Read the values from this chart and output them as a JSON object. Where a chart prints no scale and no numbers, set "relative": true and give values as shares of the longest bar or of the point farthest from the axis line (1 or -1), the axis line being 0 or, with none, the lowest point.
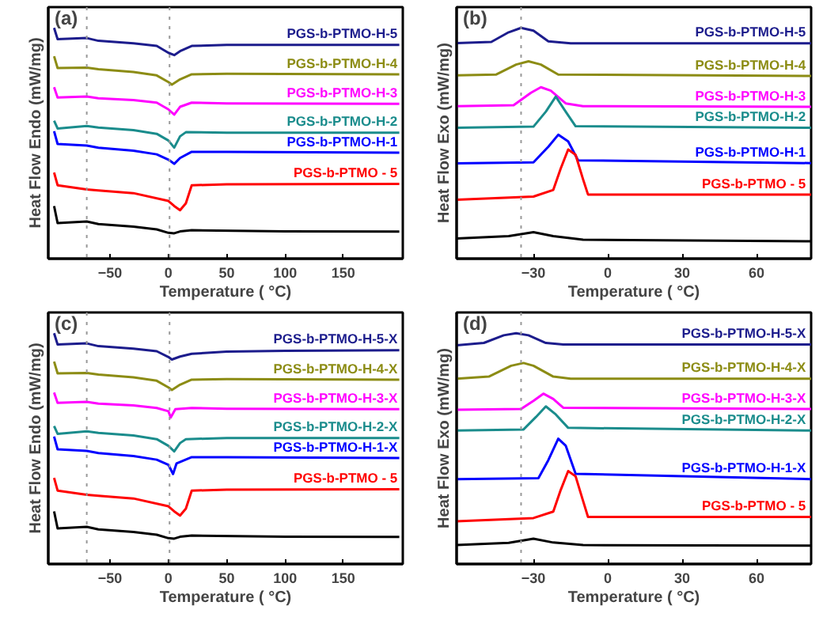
{
  "chart_data": [
    {
      "type": "line",
      "title": "(a)",
      "xlabel": "Temperature ( °C)",
      "ylabel": "Heat Flow Endo (mW/mg)",
      "relative": true,
      "xlim": [
        -103,
        201
      ],
      "xticks": [
        -50,
        0,
        50,
        100,
        150
      ],
      "grid": false,
      "ref_lines": [
        {
          "axis": "x",
          "value": -70,
          "color": "#999999",
          "line_style": "dotted"
        },
        {
          "axis": "x",
          "value": 1,
          "color": "#999999",
          "line_style": "dotted"
        }
      ],
      "series": [
        {
          "name": "PGS-b-PTMO-H-5",
          "color": "#1c1c8c",
          "x": [
            -98,
            -95,
            -70,
            -60,
            -30,
            -10,
            0,
            5,
            10,
            20,
            50,
            100,
            198
          ],
          "values": [
            1.0,
            0.951,
            0.956,
            0.944,
            0.933,
            0.922,
            0.892,
            0.882,
            0.899,
            0.922,
            0.926,
            0.926,
            0.926
          ]
        },
        {
          "name": "PGS-b-PTMO-H-4",
          "color": "#8c8c14",
          "x": [
            -98,
            -95,
            -70,
            -60,
            -30,
            -10,
            0,
            3,
            10,
            20,
            50,
            198
          ],
          "values": [
            0.877,
            0.826,
            0.828,
            0.821,
            0.809,
            0.794,
            0.765,
            0.754,
            0.777,
            0.799,
            0.801,
            0.799
          ]
        },
        {
          "name": "PGS-b-PTMO-H-3",
          "color": "#ff00ff",
          "x": [
            -98,
            -95,
            -70,
            -60,
            -30,
            -10,
            0,
            5,
            10,
            20,
            50,
            198
          ],
          "values": [
            0.743,
            0.698,
            0.703,
            0.695,
            0.687,
            0.676,
            0.647,
            0.624,
            0.658,
            0.676,
            0.673,
            0.671
          ]
        },
        {
          "name": "PGS-b-PTMO-H-2",
          "color": "#1a8c8c",
          "x": [
            -98,
            -95,
            -70,
            -60,
            -30,
            -10,
            0,
            5,
            10,
            15,
            50,
            198
          ],
          "values": [
            0.598,
            0.564,
            0.575,
            0.568,
            0.557,
            0.541,
            0.512,
            0.481,
            0.53,
            0.548,
            0.546,
            0.546
          ]
        },
        {
          "name": "PGS-b-PTMO-H-1",
          "color": "#0000ff",
          "x": [
            -98,
            -95,
            -70,
            -60,
            -30,
            -10,
            0,
            5,
            10,
            20,
            50,
            198
          ],
          "values": [
            0.552,
            0.497,
            0.49,
            0.481,
            0.468,
            0.452,
            0.429,
            0.411,
            0.436,
            0.463,
            0.463,
            0.459
          ]
        },
        {
          "name": "PGS-b-PTMO - 5",
          "color": "#ff0000",
          "x": [
            -98,
            -95,
            -70,
            -60,
            -30,
            0,
            5,
            10,
            15,
            20,
            50,
            198
          ],
          "values": [
            0.373,
            0.318,
            0.3,
            0.296,
            0.284,
            0.25,
            0.228,
            0.21,
            0.24,
            0.318,
            0.322,
            0.324
          ]
        },
        {
          "color": "#000000",
          "x": [
            -98,
            -95,
            -70,
            -60,
            -30,
            -10,
            0,
            5,
            10,
            20,
            100,
            198
          ],
          "values": [
            0.228,
            0.154,
            0.161,
            0.15,
            0.139,
            0.127,
            0.112,
            0.11,
            0.118,
            0.123,
            0.118,
            0.117
          ]
        }
      ]
    },
    {
      "type": "line",
      "title": "(b)",
      "xlabel": "Temperature ( °C)",
      "ylabel": "Heat Flow Exo (mW/mg)",
      "relative": true,
      "xlim": [
        -61,
        82
      ],
      "xticks": [
        -30,
        0,
        30,
        60
      ],
      "grid": false,
      "ref_lines": [
        {
          "axis": "x",
          "value": -35,
          "color": "#999999",
          "line_style": "dotted"
        }
      ],
      "series": [
        {
          "name": "PGS-b-PTMO-H-5",
          "color": "#1c1c8c",
          "x": [
            -61,
            -47,
            -40,
            -35,
            -30,
            -24,
            -15,
            82
          ],
          "values": [
            0.934,
            0.939,
            0.981,
            1.0,
            0.988,
            0.942,
            0.933,
            0.933
          ]
        },
        {
          "name": "PGS-b-PTMO-H-4",
          "color": "#8c8c14",
          "x": [
            -61,
            -45,
            -37,
            -32,
            -27,
            -20,
            82
          ],
          "values": [
            0.794,
            0.798,
            0.841,
            0.855,
            0.841,
            0.798,
            0.792
          ]
        },
        {
          "name": "PGS-b-PTMO-H-3",
          "color": "#ff00ff",
          "x": [
            -61,
            -38,
            -31,
            -27,
            -23,
            -17,
            -10,
            82
          ],
          "values": [
            0.661,
            0.665,
            0.719,
            0.743,
            0.728,
            0.673,
            0.661,
            0.658
          ]
        },
        {
          "name": "PGS-b-PTMO-H-2",
          "color": "#1a8c8c",
          "x": [
            -61,
            -30,
            -25,
            -21,
            -17,
            -13,
            82
          ],
          "values": [
            0.567,
            0.572,
            0.637,
            0.702,
            0.637,
            0.574,
            0.567
          ]
        },
        {
          "name": "PGS-b-PTMO-H-1",
          "color": "#0000ff",
          "x": [
            -61,
            -30,
            -24,
            -20,
            -16,
            -12,
            82
          ],
          "values": [
            0.413,
            0.417,
            0.485,
            0.537,
            0.508,
            0.426,
            0.414
          ]
        },
        {
          "name": "PGS-b-PTMO - 5",
          "color": "#ff0000",
          "x": [
            -61,
            -30,
            -22,
            -19,
            -16,
            -13,
            -10,
            -8,
            82
          ],
          "values": [
            0.255,
            0.269,
            0.298,
            0.391,
            0.473,
            0.45,
            0.344,
            0.278,
            0.278
          ]
        },
        {
          "color": "#000000",
          "x": [
            -61,
            -40,
            -30,
            -22,
            -10,
            82
          ],
          "values": [
            0.087,
            0.098,
            0.115,
            0.098,
            0.082,
            0.075
          ]
        }
      ]
    },
    {
      "type": "line",
      "title": "(c)",
      "xlabel": "Temperature ( °C)",
      "ylabel": "Heat Flow Endo (mW/mg)",
      "relative": true,
      "xlim": [
        -103,
        201
      ],
      "xticks": [
        -50,
        0,
        50,
        100,
        150
      ],
      "grid": false,
      "ref_lines": [
        {
          "axis": "x",
          "value": -70,
          "color": "#999999",
          "line_style": "dotted"
        },
        {
          "axis": "x",
          "value": 1,
          "color": "#999999",
          "line_style": "dotted"
        }
      ],
      "series": [
        {
          "name": "PGS-b-PTMO-H-5-X",
          "color": "#1c1c8c",
          "x": [
            -98,
            -95,
            -70,
            -60,
            -30,
            -10,
            0,
            3,
            10,
            20,
            50,
            100,
            198
          ],
          "values": [
            1.0,
            0.951,
            0.956,
            0.944,
            0.933,
            0.922,
            0.897,
            0.886,
            0.899,
            0.911,
            0.92,
            0.924,
            0.926
          ]
        },
        {
          "name": "PGS-b-PTMO-H-4-X",
          "color": "#8c8c14",
          "x": [
            -98,
            -95,
            -70,
            -60,
            -30,
            -10,
            0,
            3,
            10,
            20,
            50,
            198
          ],
          "values": [
            0.877,
            0.826,
            0.828,
            0.821,
            0.809,
            0.794,
            0.765,
            0.754,
            0.777,
            0.799,
            0.801,
            0.799
          ]
        },
        {
          "name": "PGS-b-PTMO-H-3-X",
          "color": "#ff00ff",
          "x": [
            -98,
            -95,
            -70,
            -60,
            -30,
            -10,
            0,
            2,
            6,
            20,
            50,
            198
          ],
          "values": [
            0.743,
            0.698,
            0.703,
            0.695,
            0.687,
            0.676,
            0.662,
            0.635,
            0.671,
            0.676,
            0.673,
            0.671
          ]
        },
        {
          "name": "PGS-b-PTMO-H-2-X",
          "color": "#1a8c8c",
          "x": [
            -98,
            -95,
            -70,
            -60,
            -30,
            -10,
            0,
            5,
            10,
            15,
            50,
            198
          ],
          "values": [
            0.598,
            0.564,
            0.575,
            0.568,
            0.557,
            0.541,
            0.512,
            0.488,
            0.524,
            0.541,
            0.546,
            0.546
          ]
        },
        {
          "name": "PGS-b-PTMO-H-1-X",
          "color": "#0000ff",
          "x": [
            -98,
            -95,
            -70,
            -60,
            -30,
            -10,
            0,
            4,
            7,
            20,
            50,
            198
          ],
          "values": [
            0.552,
            0.497,
            0.49,
            0.481,
            0.468,
            0.452,
            0.43,
            0.39,
            0.436,
            0.463,
            0.463,
            0.459
          ]
        },
        {
          "name": "PGS-b-PTMO - 5",
          "color": "#ff0000",
          "x": [
            -98,
            -95,
            -70,
            -60,
            -30,
            0,
            5,
            10,
            15,
            20,
            50,
            198
          ],
          "values": [
            0.373,
            0.318,
            0.3,
            0.296,
            0.284,
            0.25,
            0.228,
            0.21,
            0.24,
            0.318,
            0.322,
            0.324
          ]
        },
        {
          "color": "#000000",
          "x": [
            -98,
            -95,
            -70,
            -60,
            -30,
            -10,
            0,
            5,
            10,
            20,
            100,
            198
          ],
          "values": [
            0.228,
            0.154,
            0.161,
            0.15,
            0.139,
            0.127,
            0.112,
            0.11,
            0.118,
            0.123,
            0.118,
            0.117
          ]
        }
      ]
    },
    {
      "type": "line",
      "title": "(d)",
      "xlabel": "Temperature ( °C)",
      "ylabel": "Heat Flow Exo (mW/mg)",
      "relative": true,
      "xlim": [
        -61,
        82
      ],
      "xticks": [
        -30,
        0,
        30,
        60
      ],
      "grid": false,
      "ref_lines": [
        {
          "axis": "x",
          "value": -35,
          "color": "#999999",
          "line_style": "dotted"
        }
      ],
      "series": [
        {
          "name": "PGS-b-PTMO-H-5-X",
          "color": "#1c1c8c",
          "x": [
            -61,
            -50,
            -42,
            -37,
            -32,
            -25,
            -18,
            82
          ],
          "values": [
            0.948,
            0.958,
            0.991,
            1.0,
            0.991,
            0.958,
            0.951,
            0.951
          ]
        },
        {
          "name": "PGS-b-PTMO-H-4-X",
          "color": "#8c8c14",
          "x": [
            -61,
            -48,
            -39,
            -34,
            -30,
            -22,
            -15,
            82
          ],
          "values": [
            0.803,
            0.812,
            0.859,
            0.871,
            0.859,
            0.812,
            0.803,
            0.803
          ]
        },
        {
          "name": "PGS-b-PTMO-H-3-X",
          "color": "#ff00ff",
          "x": [
            -61,
            -35,
            -30,
            -26,
            -22,
            -18,
            82
          ],
          "values": [
            0.668,
            0.672,
            0.707,
            0.738,
            0.715,
            0.677,
            0.672
          ]
        },
        {
          "name": "PGS-b-PTMO-H-2-X",
          "color": "#1a8c8c",
          "x": [
            -61,
            -34,
            -29,
            -25,
            -21,
            -16,
            82
          ],
          "values": [
            0.578,
            0.583,
            0.637,
            0.683,
            0.648,
            0.59,
            0.578
          ]
        },
        {
          "name": "PGS-b-PTMO-H-1-X",
          "color": "#0000ff",
          "x": [
            -61,
            -28,
            -24,
            -20,
            -17,
            -13,
            82
          ],
          "values": [
            0.368,
            0.372,
            0.45,
            0.543,
            0.513,
            0.391,
            0.368
          ]
        },
        {
          "name": "PGS-b-PTMO - 5",
          "color": "#ff0000",
          "x": [
            -61,
            -30,
            -22,
            -19,
            -16,
            -13,
            -10,
            -8,
            82
          ],
          "values": [
            0.185,
            0.199,
            0.227,
            0.321,
            0.403,
            0.38,
            0.274,
            0.204,
            0.204
          ]
        },
        {
          "color": "#000000",
          "x": [
            -61,
            -40,
            -30,
            -22,
            -10,
            82
          ],
          "values": [
            0.082,
            0.092,
            0.11,
            0.093,
            0.082,
            0.08
          ]
        }
      ]
    }
  ]
}
